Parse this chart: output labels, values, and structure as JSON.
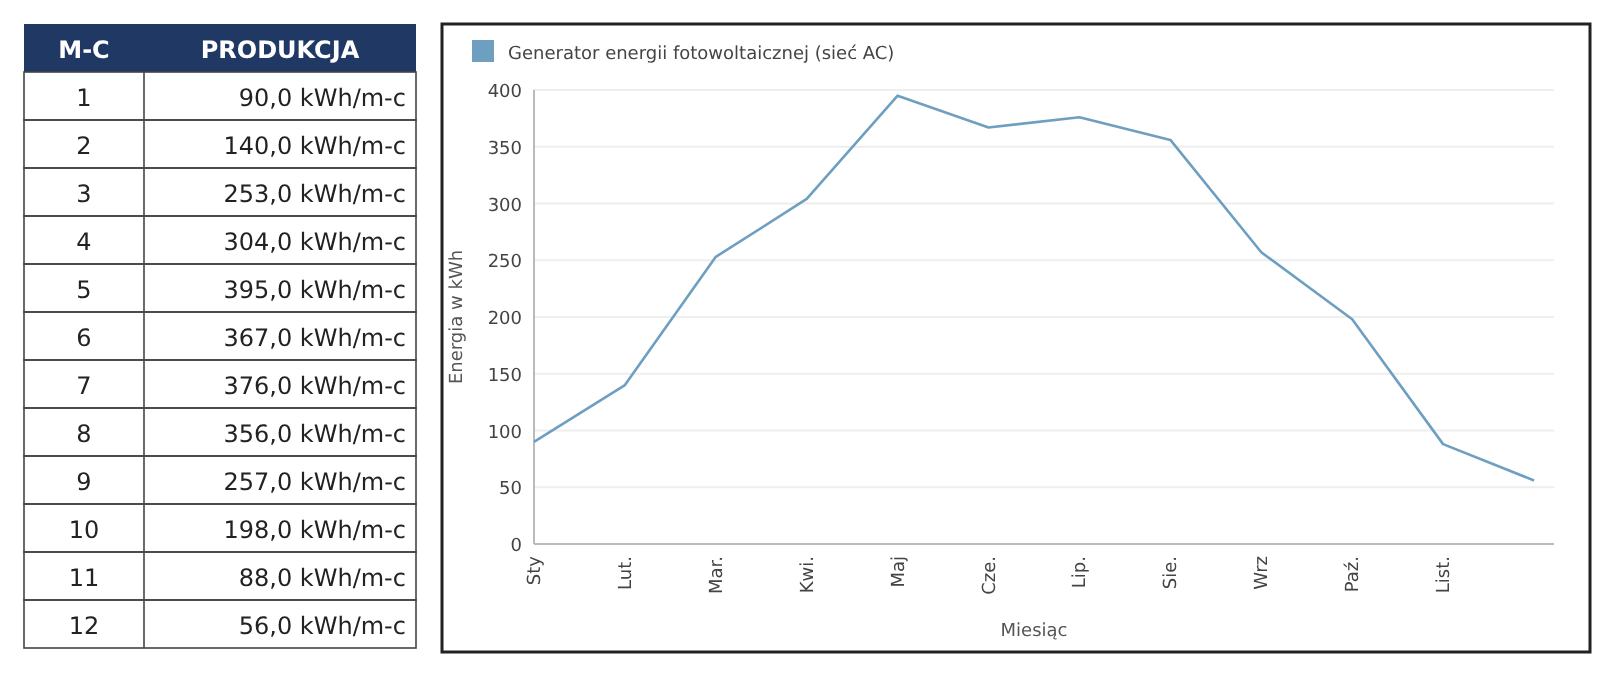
{
  "chart_data": {
    "type": "line",
    "xlabel": "Miesiąc",
    "ylabel": "Energia w kWh",
    "categories": [
      "Sty",
      "Lut.",
      "Mar.",
      "Kwi.",
      "Maj",
      "Cze.",
      "Lip.",
      "Sie.",
      "Wrz",
      "Paź.",
      "List.",
      null
    ],
    "series": [
      {
        "name": "Generator energii fotowoltaicznej (sieć AC)",
        "color": "#6f9fc0",
        "values": [
          90,
          140,
          253,
          304,
          395,
          367,
          376,
          356,
          257,
          198,
          88,
          56
        ]
      }
    ],
    "ylim": [
      0,
      400
    ],
    "yticks": [
      0,
      50,
      100,
      150,
      200,
      250,
      300,
      350,
      400
    ],
    "grid": "y",
    "legend": "top left",
    "marker": "none",
    "line_style": "solid",
    "annotations": [
      "M-C",
      "PRODUKCJA",
      "1",
      "90,0 kWh/m-c",
      "2",
      "140,0 kWh/m-c",
      "3",
      "253,0 kWh/m-c",
      "4",
      "304,0 kWh/m-c",
      "5",
      "395,0 kWh/m-c",
      "6",
      "367,0 kWh/m-c",
      "7",
      "376,0 kWh/m-c",
      "8",
      "356,0 kWh/m-c",
      "9",
      "257,0 kWh/m-c",
      "10",
      "198,0 kWh/m-c",
      "11",
      "88,0 kWh/m-c",
      "12",
      "56,0 kWh/m-c"
    ]
  }
}
